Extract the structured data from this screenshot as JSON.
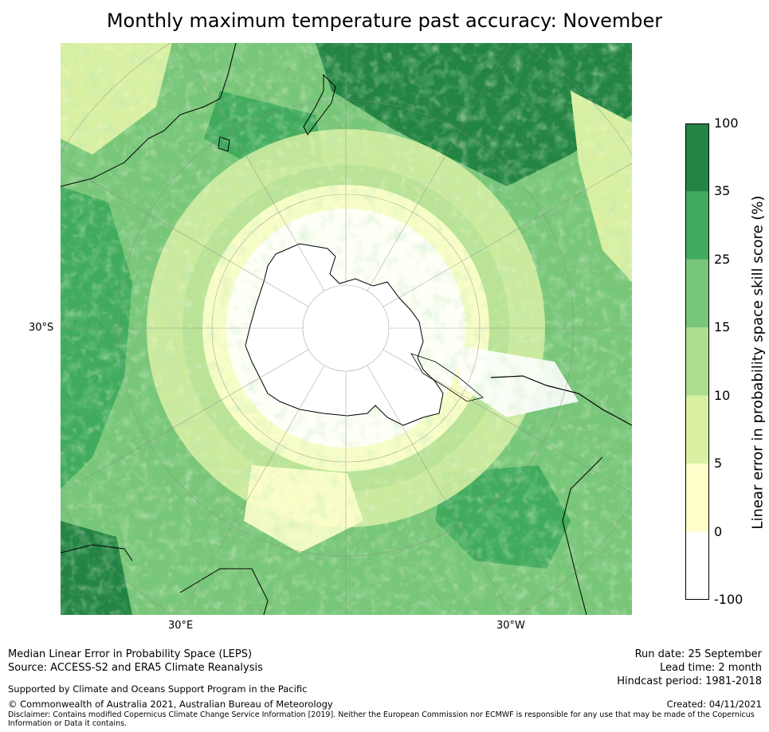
{
  "title": "Monthly maximum temperature past accuracy: November",
  "map": {
    "projection": "south-polar-stereographic",
    "lat_labels": [
      "30°S"
    ],
    "lon_labels": [
      "30°E",
      "30°W"
    ]
  },
  "colorbar": {
    "title": "Linear error in probability space skill score (%)",
    "ticks": [
      "100",
      "35",
      "25",
      "15",
      "10",
      "5",
      "0",
      "-100"
    ],
    "bins": [
      {
        "from": -100,
        "to": 0,
        "color": "#ffffff"
      },
      {
        "from": 0,
        "to": 5,
        "color": "#ffffcc"
      },
      {
        "from": 5,
        "to": 10,
        "color": "#d9f0a3"
      },
      {
        "from": 10,
        "to": 15,
        "color": "#addd8e"
      },
      {
        "from": 15,
        "to": 25,
        "color": "#78c679"
      },
      {
        "from": 25,
        "to": 35,
        "color": "#41ab5d"
      },
      {
        "from": 35,
        "to": 100,
        "color": "#238443"
      }
    ]
  },
  "footer": {
    "line1": "Median Linear Error in Probability Space (LEPS)",
    "line2": "Source: ACCESS-S2 and ERA5 Climate Reanalysis",
    "support": "Supported by Climate and Oceans Support Program in the Pacific",
    "copyright": "© Commonwealth of Australia 2021, Australian Bureau of Meteorology",
    "disclaimer1": "Disclaimer: Contains modified Copernicus Climate Change Service Information [2019]. Neither the European Commission nor ECMWF is responsible for any use that may be made of the Copernicus",
    "disclaimer2": "Information or Data it contains.",
    "run_date": "Run date: 25 September",
    "lead_time": "Lead time: 2 month",
    "hindcast": "Hindcast period: 1981-2018",
    "created": "Created: 04/11/2021"
  }
}
